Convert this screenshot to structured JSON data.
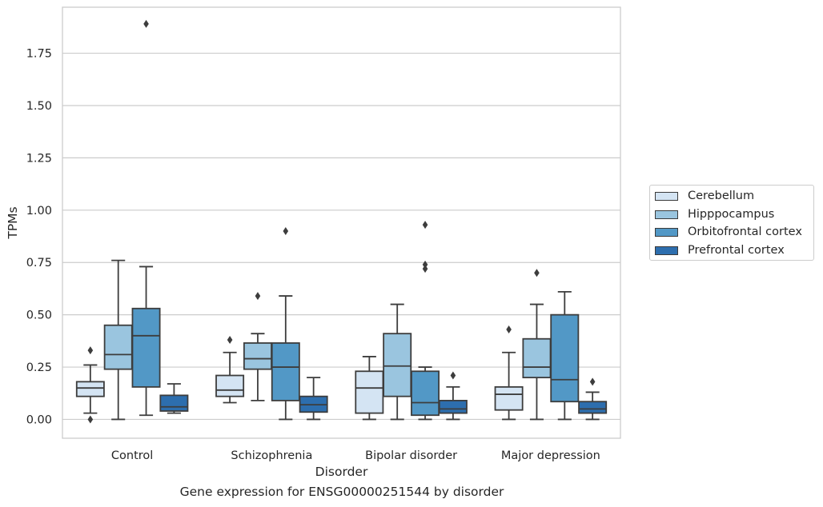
{
  "caption": "Gene expression for ENSG00000251544 by disorder",
  "chart_data": {
    "type": "box",
    "xlabel": "Disorder",
    "ylabel": "TPMs",
    "ylim": [
      -0.09,
      1.97
    ],
    "yticks": [
      0.0,
      0.25,
      0.5,
      0.75,
      1.0,
      1.25,
      1.5,
      1.75
    ],
    "ytick_labels": [
      "0.00",
      "0.25",
      "0.50",
      "0.75",
      "1.00",
      "1.25",
      "1.50",
      "1.75"
    ],
    "grid": true,
    "legend_position": "right",
    "categories": [
      "Control",
      "Schizophrenia",
      "Bipolar disorder",
      "Major depression"
    ],
    "series": [
      {
        "name": "Cerebellum",
        "color": "#d4e4f3",
        "boxes": [
          {
            "whislo": 0.03,
            "q1": 0.11,
            "med": 0.15,
            "q3": 0.18,
            "whishi": 0.26,
            "fliers": [
              0.33,
              0.0
            ]
          },
          {
            "whislo": 0.08,
            "q1": 0.11,
            "med": 0.14,
            "q3": 0.21,
            "whishi": 0.32,
            "fliers": [
              0.38
            ]
          },
          {
            "whislo": 0.0,
            "q1": 0.03,
            "med": 0.15,
            "q3": 0.23,
            "whishi": 0.3,
            "fliers": []
          },
          {
            "whislo": 0.0,
            "q1": 0.045,
            "med": 0.12,
            "q3": 0.155,
            "whishi": 0.32,
            "fliers": [
              0.43
            ]
          }
        ]
      },
      {
        "name": "Hipppocampus",
        "color": "#9ac5df",
        "boxes": [
          {
            "whislo": 0.0,
            "q1": 0.24,
            "med": 0.31,
            "q3": 0.45,
            "whishi": 0.76,
            "fliers": []
          },
          {
            "whislo": 0.09,
            "q1": 0.24,
            "med": 0.29,
            "q3": 0.365,
            "whishi": 0.41,
            "fliers": [
              0.59
            ]
          },
          {
            "whislo": 0.0,
            "q1": 0.11,
            "med": 0.255,
            "q3": 0.41,
            "whishi": 0.55,
            "fliers": []
          },
          {
            "whislo": 0.0,
            "q1": 0.2,
            "med": 0.25,
            "q3": 0.385,
            "whishi": 0.55,
            "fliers": [
              0.7
            ]
          }
        ]
      },
      {
        "name": "Orbitofrontal cortex",
        "color": "#5298c6",
        "boxes": [
          {
            "whislo": 0.02,
            "q1": 0.155,
            "med": 0.4,
            "q3": 0.53,
            "whishi": 0.73,
            "fliers": [
              1.89
            ]
          },
          {
            "whislo": 0.0,
            "q1": 0.09,
            "med": 0.25,
            "q3": 0.365,
            "whishi": 0.59,
            "fliers": [
              0.9
            ]
          },
          {
            "whislo": 0.0,
            "q1": 0.02,
            "med": 0.08,
            "q3": 0.23,
            "whishi": 0.25,
            "fliers": [
              0.93,
              0.74,
              0.72
            ]
          },
          {
            "whislo": 0.0,
            "q1": 0.085,
            "med": 0.19,
            "q3": 0.5,
            "whishi": 0.61,
            "fliers": []
          }
        ]
      },
      {
        "name": "Prefrontal cortex",
        "color": "#2d6eae",
        "boxes": [
          {
            "whislo": 0.03,
            "q1": 0.04,
            "med": 0.06,
            "q3": 0.115,
            "whishi": 0.17,
            "fliers": []
          },
          {
            "whislo": 0.0,
            "q1": 0.035,
            "med": 0.07,
            "q3": 0.11,
            "whishi": 0.2,
            "fliers": []
          },
          {
            "whislo": 0.0,
            "q1": 0.03,
            "med": 0.05,
            "q3": 0.09,
            "whishi": 0.155,
            "fliers": [
              0.21
            ]
          },
          {
            "whislo": 0.0,
            "q1": 0.03,
            "med": 0.05,
            "q3": 0.085,
            "whishi": 0.13,
            "fliers": [
              0.18
            ]
          }
        ]
      }
    ]
  }
}
